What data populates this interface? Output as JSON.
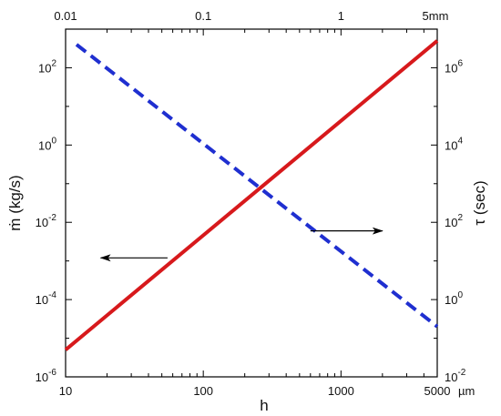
{
  "chart_data": {
    "type": "line",
    "title": "",
    "xlabel": "h",
    "x_unit": "µm",
    "x_scale": "log",
    "xlim": [
      10,
      5000
    ],
    "x_ticks": [
      10,
      100,
      1000,
      5000
    ],
    "x_tick_labels": [
      "10",
      "100",
      "1000",
      "5000"
    ],
    "top_axis_ticks": [
      100,
      1000,
      10000,
      50000
    ],
    "top_axis_tick_labels": [
      "0.01",
      "0.1",
      "1",
      "5mm"
    ],
    "ylabel_left": "ṁ (kg/s)",
    "y_left_scale": "log",
    "y_left_lim": [
      1e-06,
      1000.0
    ],
    "y_left_ticks": [
      1e-06,
      0.0001,
      0.01,
      1,
      100
    ],
    "y_left_tick_labels": [
      {
        "base": "10",
        "exp": "-6"
      },
      {
        "base": "10",
        "exp": "-4"
      },
      {
        "base": "10",
        "exp": "-2"
      },
      {
        "base": "10",
        "exp": "0"
      },
      {
        "base": "10",
        "exp": "2"
      }
    ],
    "ylabel_right": "τ (sec)",
    "y_right_scale": "log",
    "y_right_lim": [
      0.01,
      10000000.0
    ],
    "y_right_ticks": [
      0.01,
      1,
      100,
      10000.0,
      1000000.0
    ],
    "y_right_tick_labels": [
      {
        "base": "10",
        "exp": "-2"
      },
      {
        "base": "10",
        "exp": "0"
      },
      {
        "base": "10",
        "exp": "2"
      },
      {
        "base": "10",
        "exp": "4"
      },
      {
        "base": "10",
        "exp": "6"
      }
    ],
    "grid": false,
    "series": [
      {
        "axis": "left",
        "color": "#d7191c",
        "style": "solid",
        "x": [
          10,
          5000
        ],
        "y": [
          5e-06,
          500
        ]
      },
      {
        "axis": "right",
        "color": "#1f2fd0",
        "style": "dashed",
        "x": [
          12,
          5000
        ],
        "y": [
          4000000,
          0.2
        ]
      }
    ],
    "annotations": [
      {
        "type": "arrow",
        "direction": "left",
        "refers_to": "left-axis",
        "x_from": 55,
        "x_to": 18,
        "y_left": 0.0012
      },
      {
        "type": "arrow",
        "direction": "right",
        "refers_to": "right-axis",
        "x_from": 600,
        "x_to": 2000,
        "y_left": 0.006
      }
    ]
  }
}
